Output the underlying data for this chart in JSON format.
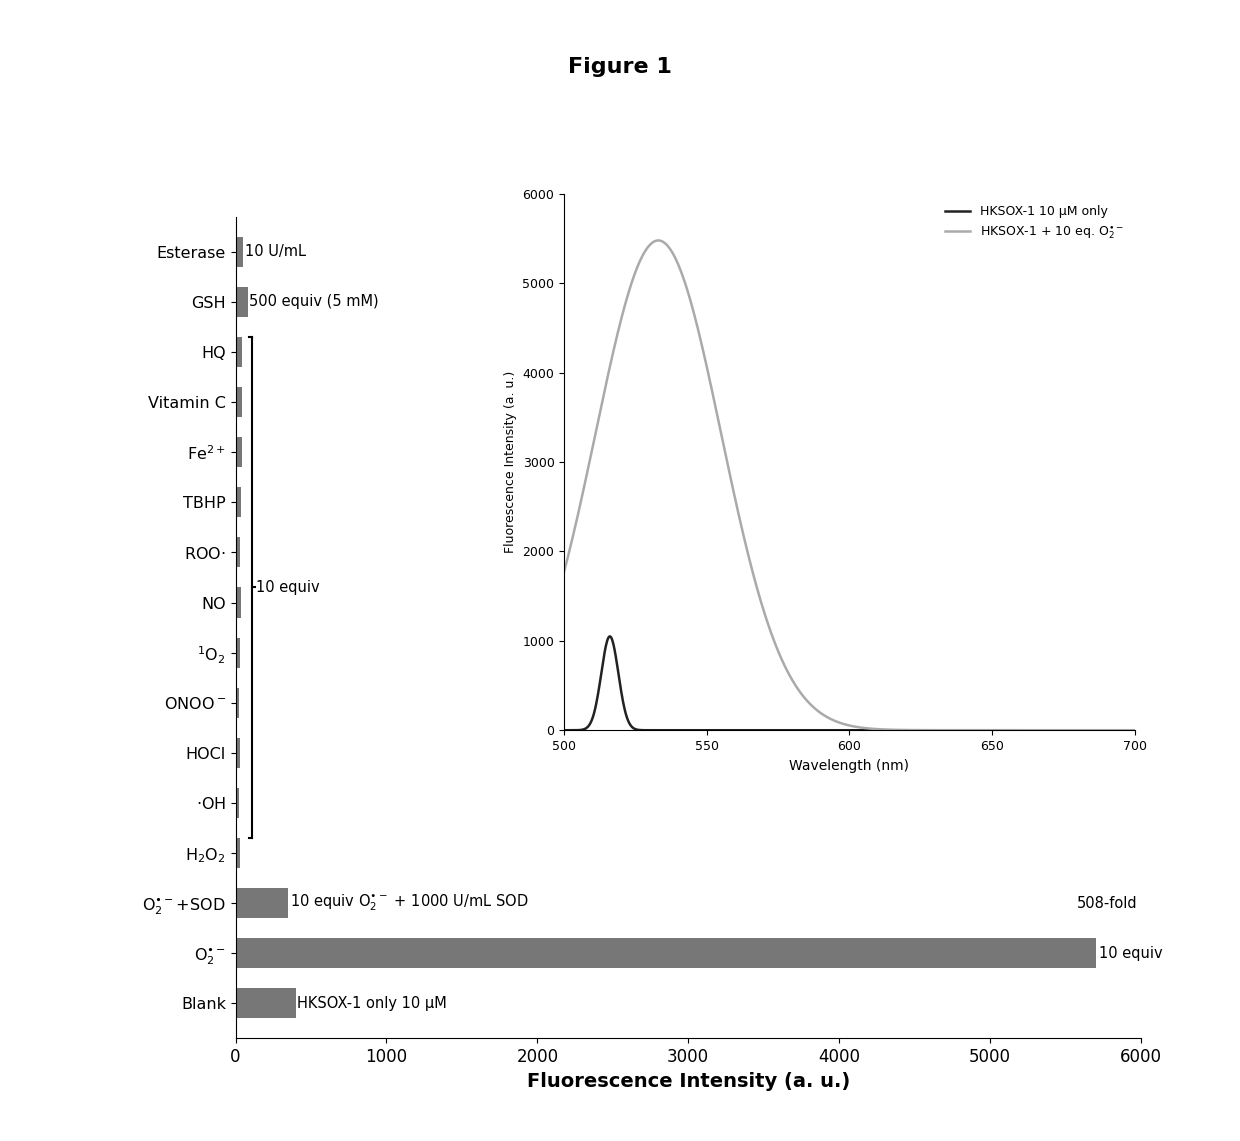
{
  "title": "Figure 1",
  "bar_labels": [
    "Blank",
    "O$_2^{\\bullet-}$",
    "O$_2^{\\bullet-}$+SOD",
    "H$_2$O$_2$",
    "\\cdotOH",
    "HOCl",
    "ONOO$^-$",
    "$^1$O$_2$",
    "NO",
    "ROO\\cdot",
    "TBHP",
    "Fe$^{2+}$",
    "Vitamin C",
    "HQ",
    "GSH",
    "Esterase"
  ],
  "bar_values": [
    400,
    5700,
    350,
    30,
    25,
    30,
    25,
    30,
    35,
    30,
    35,
    40,
    40,
    45,
    80,
    50
  ],
  "bar_color": "#777777",
  "xlim": [
    0,
    6000
  ],
  "xticks": [
    0,
    1000,
    2000,
    3000,
    4000,
    5000,
    6000
  ],
  "xlabel": "Fluorescence Intensity (a. u.)",
  "inset": {
    "xlim": [
      500,
      700
    ],
    "ylim": [
      0,
      6000
    ],
    "xticks": [
      500,
      550,
      600,
      650,
      700
    ],
    "yticks": [
      0,
      1000,
      2000,
      3000,
      4000,
      5000,
      6000
    ],
    "xlabel": "Wavelength (nm)",
    "ylabel": "Fluorescence Intensity (a. u.)",
    "line1_label": "HKSOX-1 10 μM only",
    "line2_label": "HKSOX-1 + 10 eq. O$_2^{\\bullet-}$",
    "line1_color": "#222222",
    "line2_color": "#aaaaaa",
    "line1_peak_x": 516,
    "line1_peak_y": 1050,
    "line1_sigma": 3,
    "line2_peak_x": 533,
    "line2_peak_y": 5480,
    "line2_sigma": 22
  }
}
